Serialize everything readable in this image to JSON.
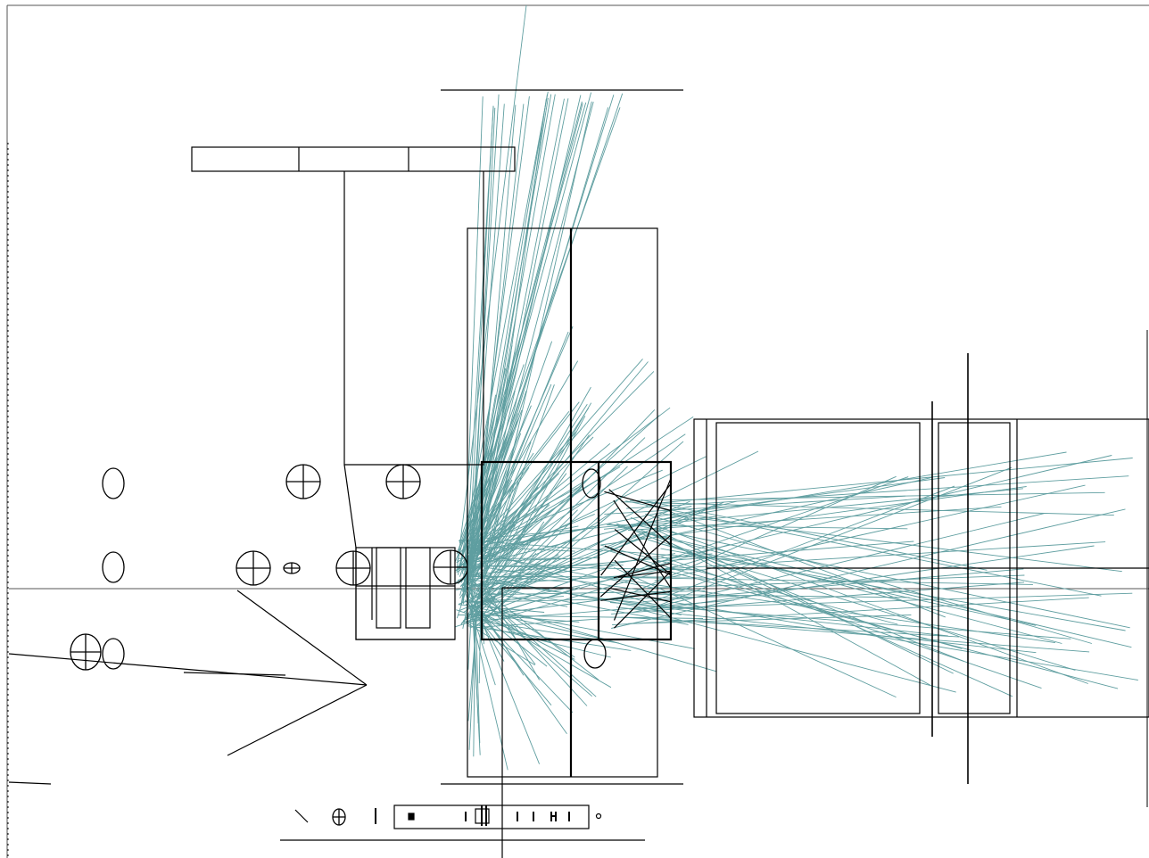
{
  "colors": {
    "background": "#ffffff",
    "line": "#000000",
    "ray": "#5f9ea0"
  },
  "icons": [
    "crosshair-circle-icon",
    "ellipse-icon"
  ]
}
